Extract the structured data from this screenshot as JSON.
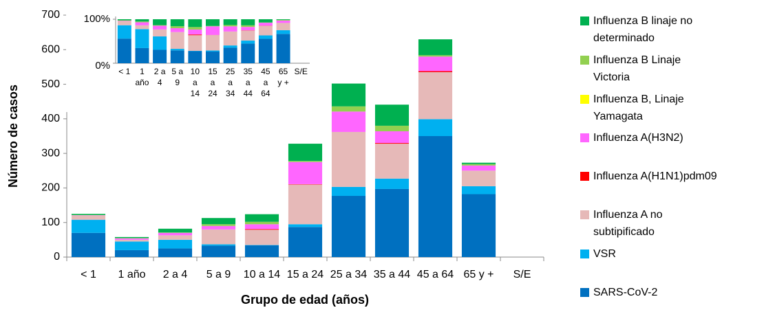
{
  "chart_data": {
    "type": "bar",
    "stacked": true,
    "x_label": "Grupo de edad (años)",
    "y_label": "Número de casos",
    "categories": [
      "< 1",
      "1 año",
      "2 a 4",
      "5 a 9",
      "10 a 14",
      "15 a 24",
      "25 a 34",
      "35 a 44",
      "45 a 64",
      "65 y +",
      "S/E"
    ],
    "series": [
      {
        "name": "SARS-CoV-2",
        "color": "#0070c0",
        "values": [
          70,
          20,
          25,
          33,
          34,
          87,
          177,
          197,
          350,
          182,
          0
        ]
      },
      {
        "name": "VSR",
        "color": "#00b0f0",
        "values": [
          38,
          25,
          25,
          4,
          1,
          8,
          26,
          30,
          49,
          23,
          0
        ]
      },
      {
        "name": "Influenza A no subtipificado",
        "color": "#e6b9b8",
        "values": [
          12,
          5,
          13,
          43,
          44,
          115,
          159,
          101,
          136,
          45,
          0
        ]
      },
      {
        "name": "Influenza A(H1N1)pdm09",
        "color": "#ff0000",
        "values": [
          0,
          0,
          0,
          0,
          2,
          1,
          0,
          2,
          3,
          0,
          0
        ]
      },
      {
        "name": "Influenza A(H3N2)",
        "color": "#ff66ff",
        "values": [
          1,
          4,
          7,
          10,
          14,
          64,
          59,
          34,
          42,
          15,
          0
        ]
      },
      {
        "name": "Influenza B, Linaje Yamagata",
        "color": "#ffff00",
        "values": [
          0,
          0,
          0,
          0,
          0,
          0,
          0,
          0,
          0,
          0,
          0
        ]
      },
      {
        "name": "Influenza B Linaje Victoria",
        "color": "#92d050",
        "values": [
          1,
          1,
          1,
          5,
          7,
          3,
          15,
          16,
          4,
          4,
          0
        ]
      },
      {
        "name": "Influenza B linaje no determinado",
        "color": "#00b050",
        "values": [
          3,
          3,
          11,
          18,
          22,
          50,
          66,
          61,
          46,
          4,
          0
        ]
      }
    ],
    "ylim": [
      0,
      700
    ],
    "yticks": [
      0,
      100,
      200,
      300,
      400,
      500,
      600,
      700
    ],
    "inset": {
      "ylim": [
        0,
        100
      ],
      "yticks": [
        {
          "value": 0,
          "label": "0%"
        },
        {
          "value": 100,
          "label": "100%"
        }
      ]
    }
  }
}
